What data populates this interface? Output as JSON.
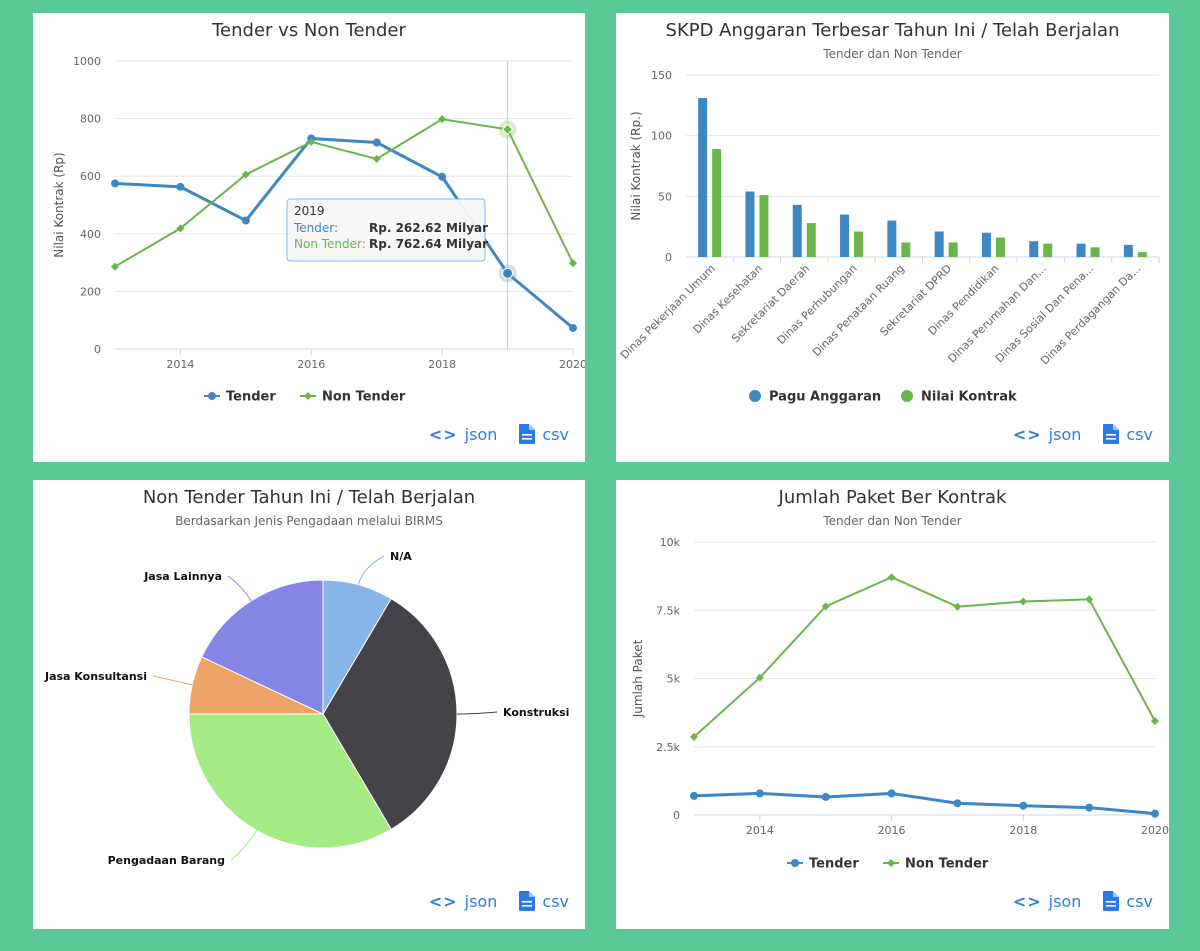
{
  "links": {
    "json_label": "json",
    "csv_label": "csv"
  },
  "colors": {
    "tender": "#3d88c2",
    "non_tender": "#6ab64c",
    "background": "#5ac897"
  },
  "chart_data": [
    {
      "id": "tender-vs-non-tender",
      "type": "line",
      "title": "Tender vs Non Tender",
      "ylabel": "Nilai Kontrak (Rp)",
      "ylim": [
        0,
        1000
      ],
      "yticks": [
        "0",
        "200",
        "400",
        "600",
        "800",
        "1000"
      ],
      "xticks": [
        "2014",
        "2016",
        "2018",
        "2020"
      ],
      "x": [
        2013,
        2014,
        2015,
        2016,
        2017,
        2018,
        2019,
        2020
      ],
      "series": [
        {
          "name": "Tender",
          "values": [
            575,
            563,
            446,
            731,
            717,
            598,
            262.62,
            73
          ]
        },
        {
          "name": "Non Tender",
          "values": [
            286,
            419,
            606,
            719,
            660,
            798,
            762.64,
            298
          ]
        }
      ],
      "tooltip": {
        "header": "2019",
        "rows": [
          {
            "label": "Tender:",
            "value": "Rp. 262.62 Milyar"
          },
          {
            "label": "Non Tender:",
            "value": "Rp. 762.64 Milyar"
          }
        ]
      },
      "legend_position": "bottom"
    },
    {
      "id": "skpd-anggaran",
      "type": "bar",
      "title": "SKPD Anggaran Terbesar Tahun Ini / Telah Berjalan",
      "subtitle": "Tender dan Non Tender",
      "ylabel": "Nilai Kontrak (Rp.)",
      "ylim": [
        0,
        150
      ],
      "yticks": [
        "0",
        "50",
        "100",
        "150"
      ],
      "categories": [
        "Dinas Pekerjaan Umum",
        "Dinas Kesehatan",
        "Sekretariat Daerah",
        "Dinas Perhubungan",
        "Dinas Penataan Ruang",
        "Sekretariat DPRD",
        "Dinas Pendidikan",
        "Dinas Perumahan Dan...",
        "Dinas Sosial Dan Pena...",
        "Dinas Perdagangan Da..."
      ],
      "series": [
        {
          "name": "Pagu Anggaran",
          "values": [
            131,
            54,
            43,
            35,
            30,
            21,
            20,
            13,
            11,
            10
          ]
        },
        {
          "name": "Nilai Kontrak",
          "values": [
            89,
            51,
            28,
            21,
            12,
            12,
            16,
            11,
            8,
            4
          ]
        }
      ],
      "legend_position": "bottom"
    },
    {
      "id": "non-tender-pie",
      "type": "pie",
      "title": "Non Tender Tahun Ini / Telah Berjalan",
      "subtitle": "Berdasarkan Jenis Pengadaan melalui BIRMS",
      "slices": [
        {
          "name": "N/A",
          "value": 8.5,
          "color": "#88b5e8"
        },
        {
          "name": "Konstruksi",
          "value": 33,
          "color": "#434348"
        },
        {
          "name": "Pengadaan Barang",
          "value": 33.5,
          "color": "#a4eb84"
        },
        {
          "name": "Jasa Konsultansi",
          "value": 7,
          "color": "#eda467"
        },
        {
          "name": "Jasa Lainnya",
          "value": 18,
          "color": "#8585e6"
        }
      ]
    },
    {
      "id": "jumlah-paket",
      "type": "line",
      "title": "Jumlah Paket Ber Kontrak",
      "subtitle": "Tender dan Non Tender",
      "ylabel": "Jumlah Paket",
      "ylim": [
        0,
        10000
      ],
      "yticks": [
        "0",
        "2.5k",
        "5k",
        "7.5k",
        "10k"
      ],
      "xticks": [
        "2014",
        "2016",
        "2018",
        "2020"
      ],
      "x": [
        2013,
        2014,
        2015,
        2016,
        2017,
        2018,
        2019,
        2020
      ],
      "series": [
        {
          "name": "Tender",
          "values": [
            700,
            790,
            660,
            790,
            430,
            340,
            270,
            50
          ]
        },
        {
          "name": "Non Tender",
          "values": [
            2860,
            5030,
            7640,
            8710,
            7630,
            7820,
            7900,
            3440
          ]
        }
      ],
      "legend_position": "bottom"
    }
  ]
}
